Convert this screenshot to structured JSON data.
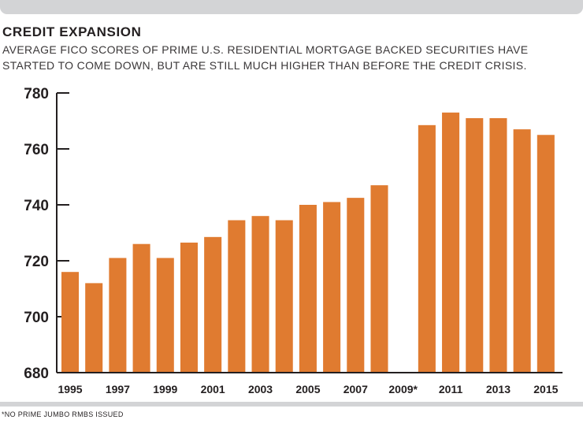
{
  "header": {
    "title": "CREDIT EXPANSION",
    "subtitle": "AVERAGE FICO SCORES OF PRIME U.S. RESIDENTIAL MORTGAGE BACKED SECURITIES HAVE STARTED TO COME DOWN, BUT ARE STILL MUCH HIGHER THAN BEFORE THE CREDIT CRISIS."
  },
  "footer": {
    "note": "*NO PRIME JUMBO RMBS ISSUED"
  },
  "colors": {
    "bar": "#e07b30",
    "axis": "#231f20",
    "band": "#d3d4d6"
  },
  "chart_data": {
    "type": "bar",
    "title": "CREDIT EXPANSION",
    "xlabel": "",
    "ylabel": "",
    "ylim": [
      680,
      780
    ],
    "yticks": [
      680,
      700,
      720,
      740,
      760,
      780
    ],
    "grid": false,
    "categories": [
      "1995",
      "1996",
      "1997",
      "1998",
      "1999",
      "2000",
      "2001",
      "2002",
      "2003",
      "2004",
      "2005",
      "2006",
      "2007",
      "2008",
      "2009*",
      "2010",
      "2011",
      "2012",
      "2013",
      "2014",
      "2015"
    ],
    "values": [
      716,
      712,
      721,
      726,
      721,
      726.5,
      728.5,
      734.5,
      736,
      734.5,
      740,
      741,
      742.5,
      747,
      null,
      768.5,
      773,
      771,
      771,
      767,
      765
    ],
    "tick_labels": [
      "1995",
      "1997",
      "1999",
      "2001",
      "2003",
      "2005",
      "2007",
      "2009*",
      "2011",
      "2013",
      "2015"
    ]
  }
}
